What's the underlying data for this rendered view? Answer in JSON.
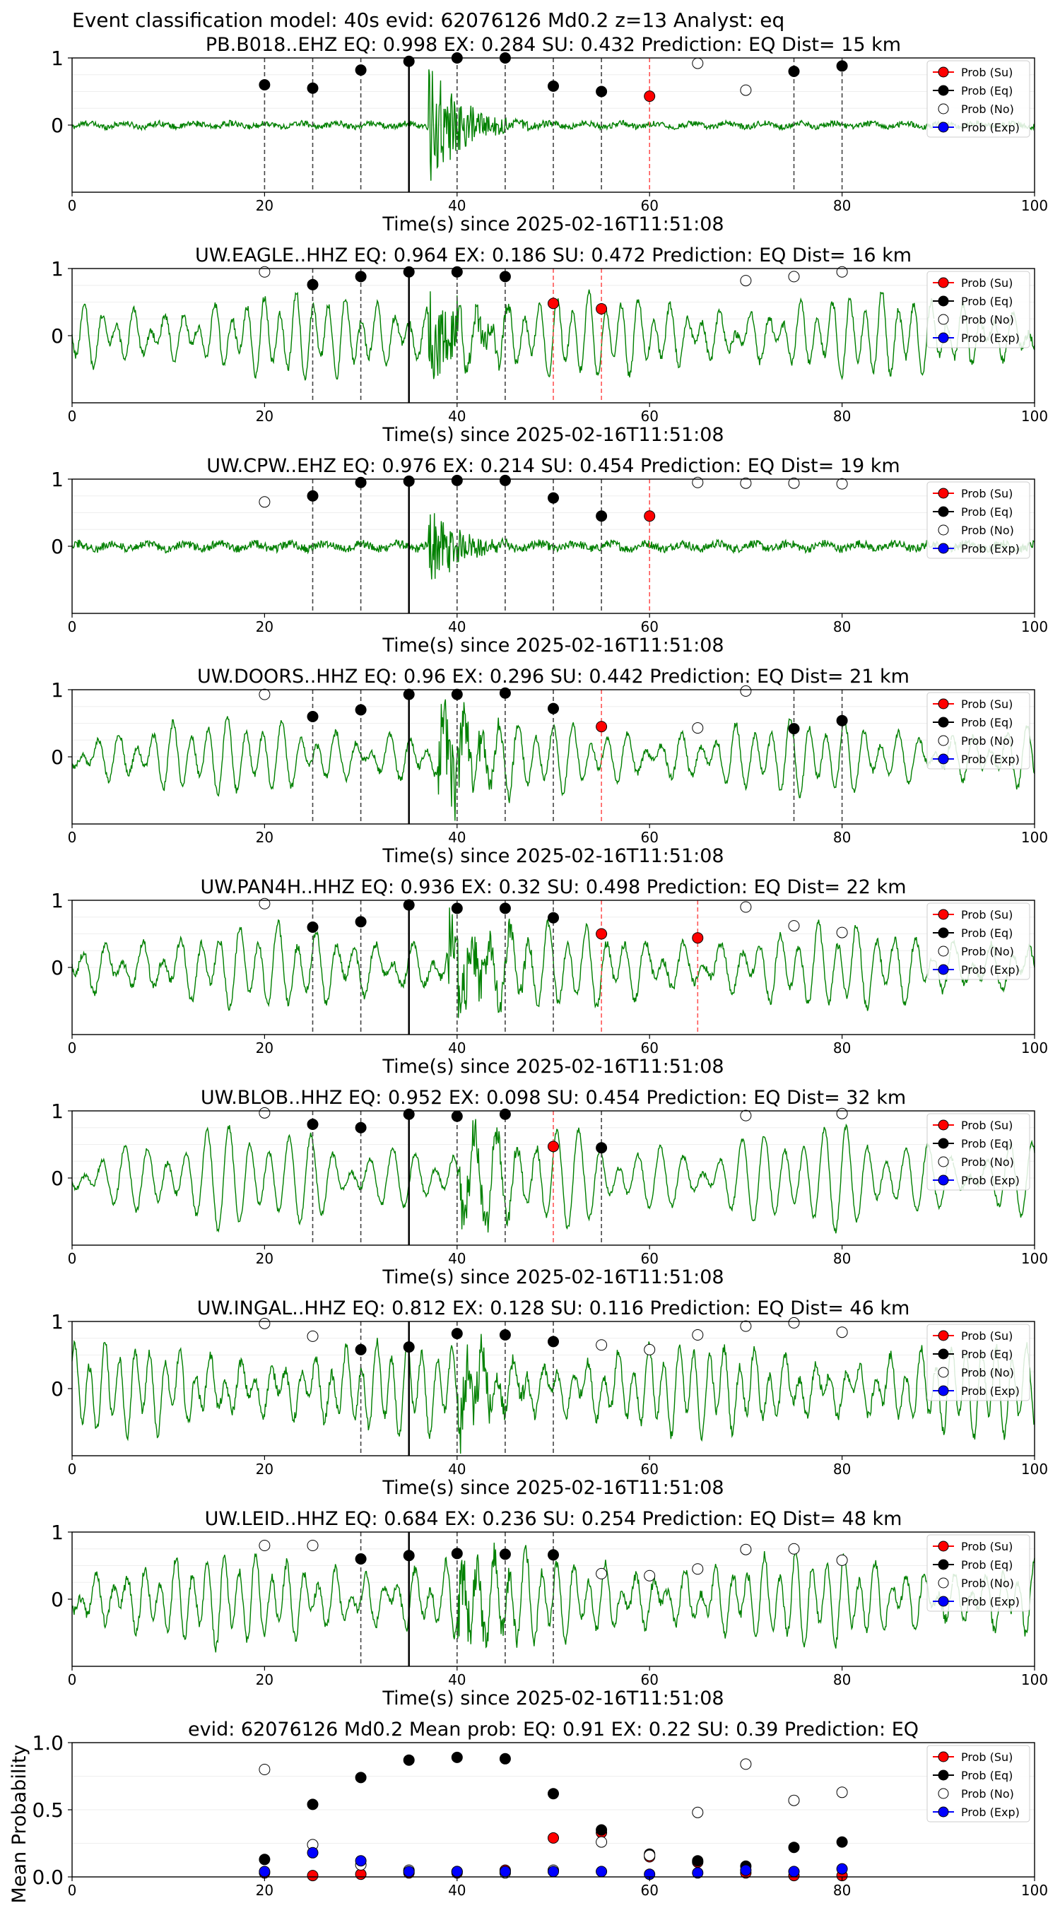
{
  "figure_title": "Event classification model: 40s evid: 62076126 Md0.2 z=13 Analyst: eq",
  "x_axis_label": "Time(s) since 2025-02-16T11:51:08",
  "legend": [
    "Prob (Su)",
    "Prob (Eq)",
    "Prob (No)",
    "Prob (Exp)"
  ],
  "colors": {
    "su": "#ff0000",
    "eq": "#000000",
    "no": "#ffffff",
    "exp": "#0000ff",
    "waveform": "#008000",
    "pick_line": "#444444",
    "su_line": "#ff5555"
  },
  "chart_data": [
    {
      "type": "line",
      "title": "PB.B018..EHZ   EQ: 0.998  EX: 0.284  SU: 0.432   Prediction: EQ    Dist= 15 km",
      "xlim": [
        0,
        100
      ],
      "yticks": [
        "0",
        "1"
      ],
      "xticks": [
        "0",
        "20",
        "40",
        "60",
        "80",
        "100"
      ],
      "waveform": {
        "style": "quiet",
        "onset": 37,
        "amp": 0.07,
        "burst_amp": 1.0,
        "noise": 1.0
      },
      "dashed_lines": [
        20,
        25,
        30,
        40,
        45,
        50,
        55,
        75,
        80
      ],
      "red_dashed_lines": [
        60
      ],
      "solid_line": 35,
      "points": [
        {
          "x": 20,
          "y": 0.6,
          "class": "eq"
        },
        {
          "x": 25,
          "y": 0.55,
          "class": "eq"
        },
        {
          "x": 30,
          "y": 0.82,
          "class": "eq"
        },
        {
          "x": 35,
          "y": 0.95,
          "class": "eq"
        },
        {
          "x": 40,
          "y": 1.0,
          "class": "eq"
        },
        {
          "x": 45,
          "y": 1.0,
          "class": "eq"
        },
        {
          "x": 50,
          "y": 0.58,
          "class": "eq"
        },
        {
          "x": 55,
          "y": 0.5,
          "class": "eq"
        },
        {
          "x": 60,
          "y": 0.43,
          "class": "su"
        },
        {
          "x": 65,
          "y": 0.92,
          "class": "no"
        },
        {
          "x": 70,
          "y": 0.52,
          "class": "no"
        },
        {
          "x": 75,
          "y": 0.8,
          "class": "eq"
        },
        {
          "x": 80,
          "y": 0.88,
          "class": "eq"
        }
      ]
    },
    {
      "type": "line",
      "title": "UW.EAGLE..HHZ   EQ: 0.964  EX: 0.186  SU: 0.472   Prediction: EQ    Dist= 16 km",
      "xlim": [
        0,
        100
      ],
      "yticks": [
        "0",
        "1"
      ],
      "xticks": [
        "0",
        "20",
        "40",
        "60",
        "80",
        "100"
      ],
      "waveform": {
        "style": "oscillating",
        "onset": 37,
        "amp": 0.5,
        "burst_amp": 0.85,
        "noise": 0.12
      },
      "dashed_lines": [
        25,
        30,
        40,
        45
      ],
      "red_dashed_lines": [
        50,
        55
      ],
      "solid_line": 35,
      "points": [
        {
          "x": 20,
          "y": 0.95,
          "class": "no"
        },
        {
          "x": 25,
          "y": 0.76,
          "class": "eq"
        },
        {
          "x": 30,
          "y": 0.88,
          "class": "eq"
        },
        {
          "x": 35,
          "y": 0.95,
          "class": "eq"
        },
        {
          "x": 40,
          "y": 0.95,
          "class": "eq"
        },
        {
          "x": 45,
          "y": 0.88,
          "class": "eq"
        },
        {
          "x": 50,
          "y": 0.48,
          "class": "su"
        },
        {
          "x": 55,
          "y": 0.4,
          "class": "su"
        },
        {
          "x": 70,
          "y": 0.82,
          "class": "no"
        },
        {
          "x": 75,
          "y": 0.88,
          "class": "no"
        },
        {
          "x": 80,
          "y": 0.95,
          "class": "no"
        }
      ]
    },
    {
      "type": "line",
      "title": "UW.CPW..EHZ   EQ: 0.976  EX: 0.214  SU: 0.454   Prediction: EQ    Dist= 19 km",
      "xlim": [
        0,
        100
      ],
      "yticks": [
        "0",
        "1"
      ],
      "xticks": [
        "0",
        "20",
        "40",
        "60",
        "80",
        "100"
      ],
      "waveform": {
        "style": "quiet",
        "onset": 37,
        "amp": 0.1,
        "burst_amp": 1.0,
        "noise": 0.6
      },
      "dashed_lines": [
        25,
        30,
        40,
        45,
        50,
        55
      ],
      "red_dashed_lines": [
        60
      ],
      "solid_line": 35,
      "points": [
        {
          "x": 20,
          "y": 0.66,
          "class": "no"
        },
        {
          "x": 25,
          "y": 0.75,
          "class": "eq"
        },
        {
          "x": 30,
          "y": 0.95,
          "class": "eq"
        },
        {
          "x": 35,
          "y": 0.97,
          "class": "eq"
        },
        {
          "x": 40,
          "y": 0.98,
          "class": "eq"
        },
        {
          "x": 45,
          "y": 0.98,
          "class": "eq"
        },
        {
          "x": 50,
          "y": 0.72,
          "class": "eq"
        },
        {
          "x": 55,
          "y": 0.45,
          "class": "eq"
        },
        {
          "x": 60,
          "y": 0.45,
          "class": "su"
        },
        {
          "x": 65,
          "y": 0.95,
          "class": "no"
        },
        {
          "x": 70,
          "y": 0.94,
          "class": "no"
        },
        {
          "x": 75,
          "y": 0.94,
          "class": "no"
        },
        {
          "x": 80,
          "y": 0.93,
          "class": "no"
        }
      ]
    },
    {
      "type": "line",
      "title": "UW.DOORS..HHZ   EQ: 0.96  EX: 0.296  SU: 0.442   Prediction: EQ    Dist= 21 km",
      "xlim": [
        0,
        100
      ],
      "yticks": [
        "0",
        "1"
      ],
      "xticks": [
        "0",
        "20",
        "40",
        "60",
        "80",
        "100"
      ],
      "waveform": {
        "style": "oscillating",
        "onset": 38,
        "amp": 0.45,
        "burst_amp": 0.95,
        "noise": 0.1
      },
      "dashed_lines": [
        25,
        30,
        40,
        45,
        50,
        75,
        80
      ],
      "red_dashed_lines": [
        55
      ],
      "solid_line": 35,
      "points": [
        {
          "x": 20,
          "y": 0.93,
          "class": "no"
        },
        {
          "x": 25,
          "y": 0.6,
          "class": "eq"
        },
        {
          "x": 30,
          "y": 0.7,
          "class": "eq"
        },
        {
          "x": 35,
          "y": 0.93,
          "class": "eq"
        },
        {
          "x": 40,
          "y": 0.93,
          "class": "eq"
        },
        {
          "x": 45,
          "y": 0.95,
          "class": "eq"
        },
        {
          "x": 50,
          "y": 0.72,
          "class": "eq"
        },
        {
          "x": 55,
          "y": 0.45,
          "class": "su"
        },
        {
          "x": 65,
          "y": 0.43,
          "class": "no"
        },
        {
          "x": 70,
          "y": 0.98,
          "class": "no"
        },
        {
          "x": 75,
          "y": 0.42,
          "class": "eq"
        },
        {
          "x": 80,
          "y": 0.54,
          "class": "eq"
        }
      ]
    },
    {
      "type": "line",
      "title": "UW.PAN4H..HHZ   EQ: 0.936  EX: 0.32  SU: 0.498   Prediction: EQ    Dist= 22 km",
      "xlim": [
        0,
        100
      ],
      "yticks": [
        "0",
        "1"
      ],
      "xticks": [
        "0",
        "20",
        "40",
        "60",
        "80",
        "100"
      ],
      "waveform": {
        "style": "oscillating",
        "onset": 39,
        "amp": 0.5,
        "burst_amp": 0.95,
        "noise": 0.12
      },
      "dashed_lines": [
        25,
        30,
        40,
        45,
        50
      ],
      "red_dashed_lines": [
        55,
        65
      ],
      "solid_line": 35,
      "points": [
        {
          "x": 20,
          "y": 0.95,
          "class": "no"
        },
        {
          "x": 25,
          "y": 0.6,
          "class": "eq"
        },
        {
          "x": 30,
          "y": 0.68,
          "class": "eq"
        },
        {
          "x": 35,
          "y": 0.93,
          "class": "eq"
        },
        {
          "x": 40,
          "y": 0.88,
          "class": "eq"
        },
        {
          "x": 45,
          "y": 0.88,
          "class": "eq"
        },
        {
          "x": 50,
          "y": 0.74,
          "class": "eq"
        },
        {
          "x": 55,
          "y": 0.5,
          "class": "su"
        },
        {
          "x": 65,
          "y": 0.44,
          "class": "su"
        },
        {
          "x": 70,
          "y": 0.9,
          "class": "no"
        },
        {
          "x": 75,
          "y": 0.62,
          "class": "no"
        },
        {
          "x": 80,
          "y": 0.52,
          "class": "no"
        }
      ]
    },
    {
      "type": "line",
      "title": "UW.BLOB..HHZ   EQ: 0.952  EX: 0.098  SU: 0.454   Prediction: EQ    Dist= 32 km",
      "xlim": [
        0,
        100
      ],
      "yticks": [
        "0",
        "1"
      ],
      "xticks": [
        "0",
        "20",
        "40",
        "60",
        "80",
        "100"
      ],
      "waveform": {
        "style": "oscillating",
        "onset": 40,
        "amp": 0.6,
        "burst_amp": 0.6,
        "noise": 0.08
      },
      "dashed_lines": [
        25,
        30,
        40,
        45,
        55
      ],
      "red_dashed_lines": [
        50
      ],
      "solid_line": 35,
      "points": [
        {
          "x": 20,
          "y": 0.97,
          "class": "no"
        },
        {
          "x": 25,
          "y": 0.8,
          "class": "eq"
        },
        {
          "x": 30,
          "y": 0.75,
          "class": "eq"
        },
        {
          "x": 35,
          "y": 0.95,
          "class": "eq"
        },
        {
          "x": 40,
          "y": 0.92,
          "class": "eq"
        },
        {
          "x": 45,
          "y": 0.95,
          "class": "eq"
        },
        {
          "x": 50,
          "y": 0.47,
          "class": "su"
        },
        {
          "x": 55,
          "y": 0.45,
          "class": "eq"
        },
        {
          "x": 70,
          "y": 0.93,
          "class": "no"
        },
        {
          "x": 80,
          "y": 0.96,
          "class": "no"
        }
      ]
    },
    {
      "type": "line",
      "title": "UW.INGAL..HHZ   EQ: 0.812  EX: 0.128  SU: 0.116   Prediction: EQ    Dist= 46 km",
      "xlim": [
        0,
        100
      ],
      "yticks": [
        "0",
        "1"
      ],
      "xticks": [
        "0",
        "20",
        "40",
        "60",
        "80",
        "100"
      ],
      "waveform": {
        "style": "oscillating",
        "onset": 40,
        "amp": 0.55,
        "burst_amp": 0.7,
        "noise": 0.15
      },
      "dashed_lines": [
        30,
        40,
        45,
        50
      ],
      "red_dashed_lines": [],
      "solid_line": 35,
      "points": [
        {
          "x": 20,
          "y": 0.97,
          "class": "no"
        },
        {
          "x": 25,
          "y": 0.78,
          "class": "no"
        },
        {
          "x": 30,
          "y": 0.58,
          "class": "eq"
        },
        {
          "x": 35,
          "y": 0.62,
          "class": "eq"
        },
        {
          "x": 40,
          "y": 0.82,
          "class": "eq"
        },
        {
          "x": 45,
          "y": 0.8,
          "class": "eq"
        },
        {
          "x": 50,
          "y": 0.7,
          "class": "eq"
        },
        {
          "x": 55,
          "y": 0.65,
          "class": "no"
        },
        {
          "x": 60,
          "y": 0.58,
          "class": "no"
        },
        {
          "x": 65,
          "y": 0.8,
          "class": "no"
        },
        {
          "x": 70,
          "y": 0.93,
          "class": "no"
        },
        {
          "x": 75,
          "y": 0.98,
          "class": "no"
        },
        {
          "x": 80,
          "y": 0.84,
          "class": "no"
        }
      ]
    },
    {
      "type": "line",
      "title": "UW.LEID..HHZ   EQ: 0.684  EX: 0.236  SU: 0.254   Prediction: EQ    Dist= 48 km",
      "xlim": [
        0,
        100
      ],
      "yticks": [
        "0",
        "1"
      ],
      "xticks": [
        "0",
        "20",
        "40",
        "60",
        "80",
        "100"
      ],
      "waveform": {
        "style": "oscillating",
        "onset": 40,
        "amp": 0.55,
        "burst_amp": 0.7,
        "noise": 0.15
      },
      "dashed_lines": [
        30,
        40,
        45,
        50
      ],
      "red_dashed_lines": [],
      "solid_line": 35,
      "points": [
        {
          "x": 20,
          "y": 0.8,
          "class": "no"
        },
        {
          "x": 25,
          "y": 0.8,
          "class": "no"
        },
        {
          "x": 30,
          "y": 0.6,
          "class": "eq"
        },
        {
          "x": 35,
          "y": 0.65,
          "class": "eq"
        },
        {
          "x": 40,
          "y": 0.68,
          "class": "eq"
        },
        {
          "x": 45,
          "y": 0.67,
          "class": "eq"
        },
        {
          "x": 50,
          "y": 0.66,
          "class": "eq"
        },
        {
          "x": 55,
          "y": 0.38,
          "class": "no"
        },
        {
          "x": 60,
          "y": 0.35,
          "class": "no"
        },
        {
          "x": 65,
          "y": 0.45,
          "class": "no"
        },
        {
          "x": 70,
          "y": 0.74,
          "class": "no"
        },
        {
          "x": 75,
          "y": 0.75,
          "class": "no"
        },
        {
          "x": 80,
          "y": 0.58,
          "class": "no"
        }
      ]
    },
    {
      "type": "scatter",
      "title": "evid: 62076126  Md0.2   Mean prob:   EQ: 0.91  EX: 0.22  SU: 0.39   Prediction: EQ",
      "ylabel": "Mean Probability",
      "xlim": [
        0,
        100
      ],
      "ylim": [
        0,
        1
      ],
      "yticks": [
        "0.0",
        "0.5",
        "1.0"
      ],
      "xticks": [
        "0",
        "20",
        "40",
        "60",
        "80",
        "100"
      ],
      "series": [
        {
          "name": "Prob (Su)",
          "class": "su",
          "x": [
            20,
            25,
            30,
            35,
            40,
            45,
            50,
            55,
            60,
            65,
            70,
            75,
            80
          ],
          "y": [
            0.03,
            0.01,
            0.02,
            0.03,
            0.03,
            0.05,
            0.29,
            0.33,
            0.15,
            0.11,
            0.03,
            0.01,
            0.01
          ]
        },
        {
          "name": "Prob (Eq)",
          "class": "eq",
          "x": [
            20,
            25,
            30,
            35,
            40,
            45,
            50,
            55,
            60,
            65,
            70,
            75,
            80
          ],
          "y": [
            0.13,
            0.54,
            0.74,
            0.87,
            0.89,
            0.88,
            0.62,
            0.35,
            0.17,
            0.12,
            0.08,
            0.22,
            0.26
          ]
        },
        {
          "name": "Prob (No)",
          "class": "no",
          "x": [
            20,
            25,
            30,
            35,
            40,
            45,
            50,
            55,
            60,
            65,
            70,
            75,
            80
          ],
          "y": [
            0.8,
            0.24,
            0.09,
            0.05,
            0.04,
            0.03,
            0.05,
            0.26,
            0.16,
            0.48,
            0.84,
            0.57,
            0.63
          ]
        },
        {
          "name": "Prob (Exp)",
          "class": "exp",
          "x": [
            20,
            25,
            30,
            35,
            40,
            45,
            50,
            55,
            60,
            65,
            70,
            75,
            80
          ],
          "y": [
            0.04,
            0.18,
            0.12,
            0.04,
            0.04,
            0.04,
            0.04,
            0.04,
            0.02,
            0.03,
            0.05,
            0.04,
            0.06
          ]
        }
      ]
    }
  ]
}
